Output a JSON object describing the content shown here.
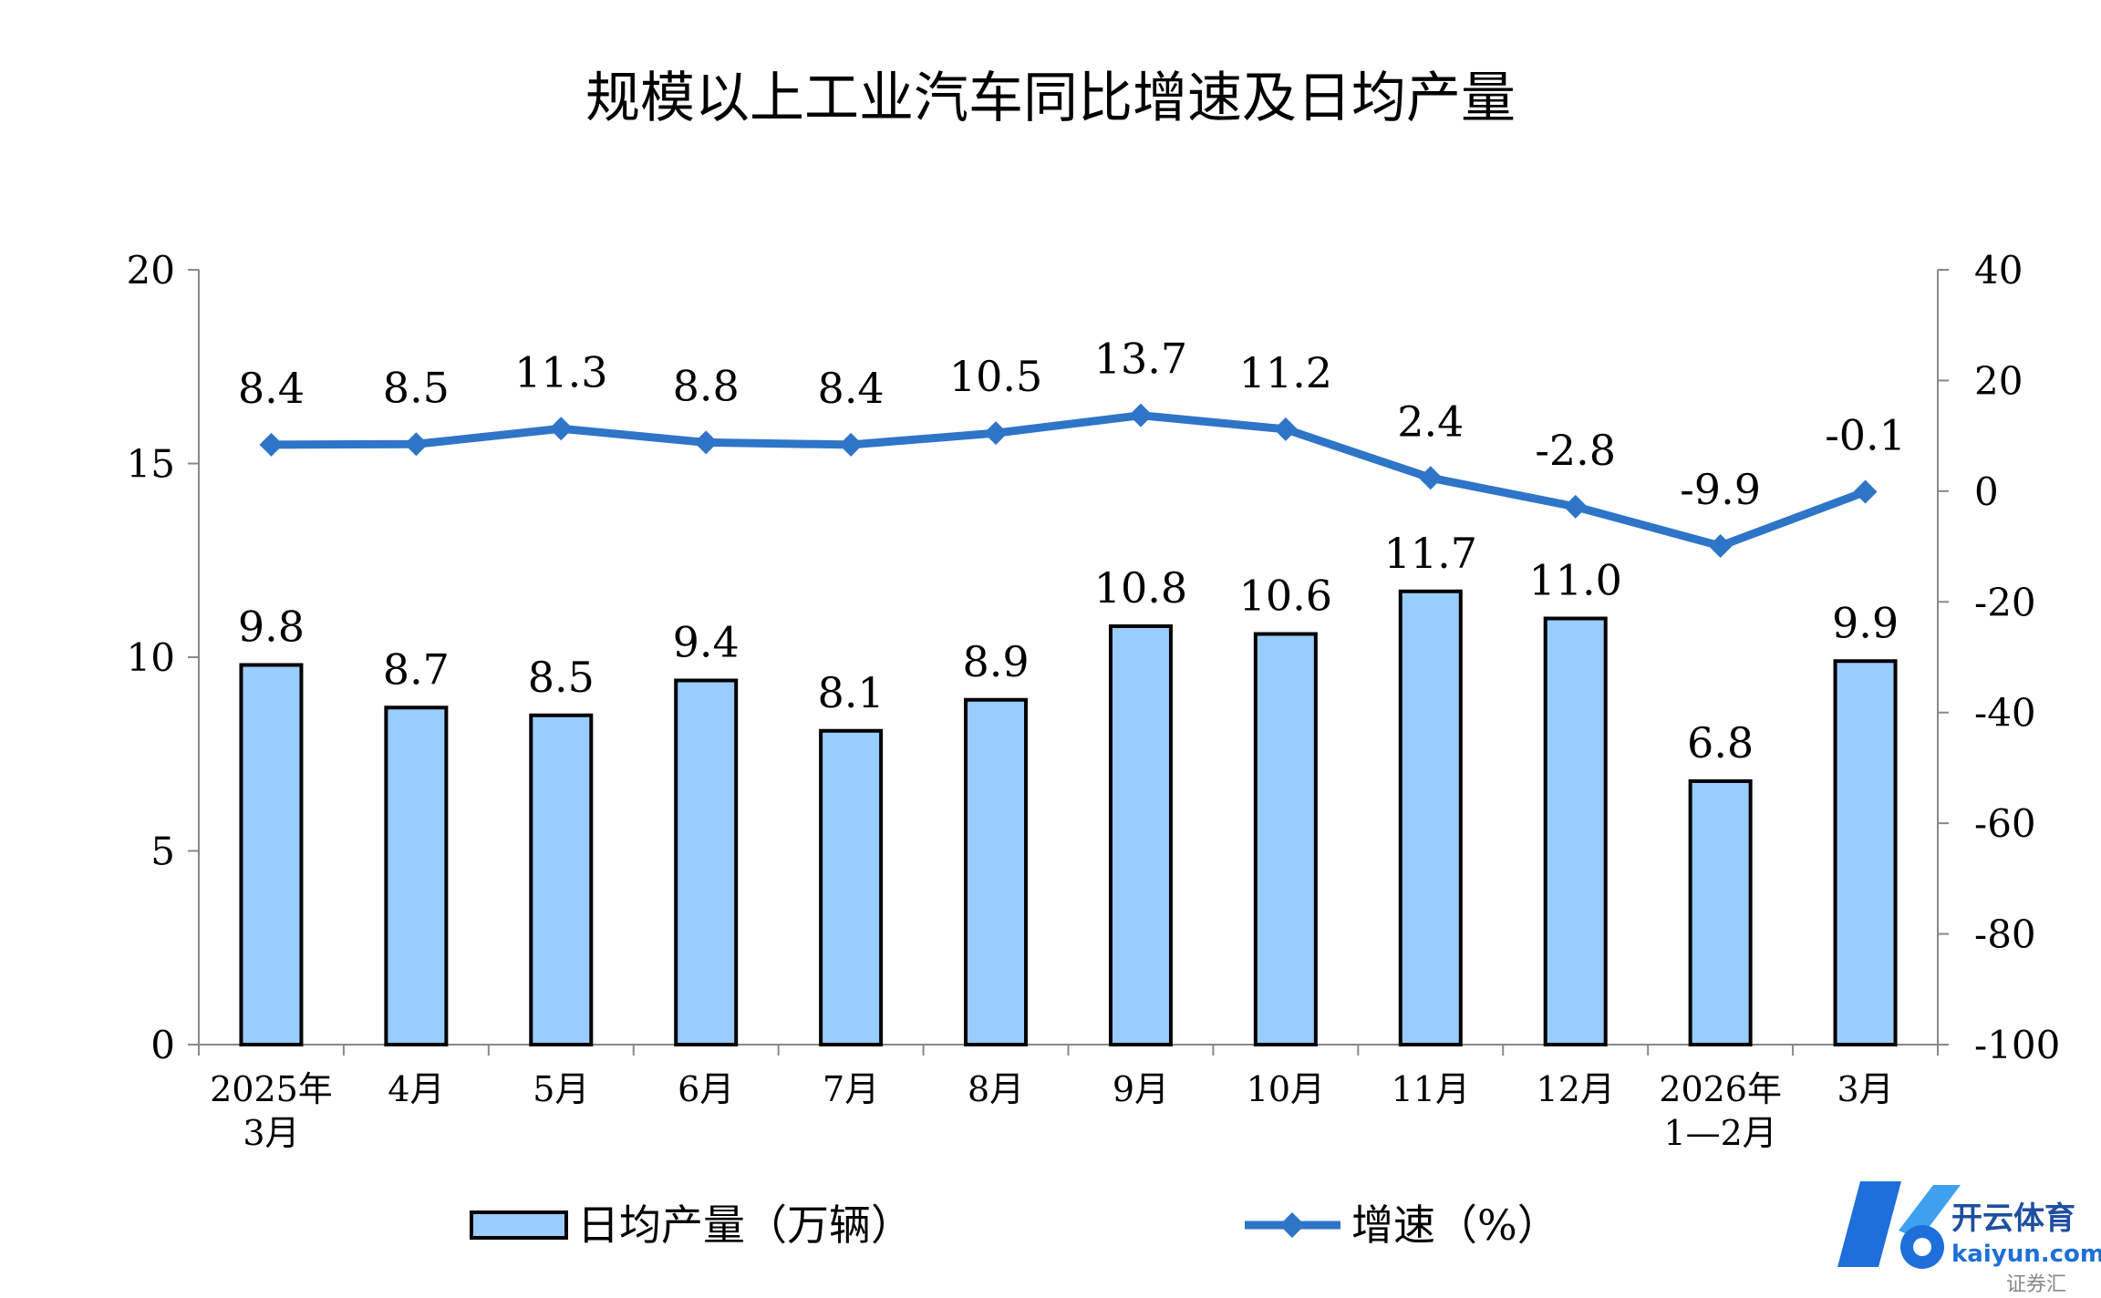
{
  "chart_data": {
    "type": "bar+line",
    "title": "规模以上工业汽车同比增速及日均产量",
    "categories": [
      [
        "2025年",
        "3月"
      ],
      [
        "4月"
      ],
      [
        "5月"
      ],
      [
        "6月"
      ],
      [
        "7月"
      ],
      [
        "8月"
      ],
      [
        "9月"
      ],
      [
        "10月"
      ],
      [
        "11月"
      ],
      [
        "12月"
      ],
      [
        "2026年",
        "1—2月"
      ],
      [
        "3月"
      ]
    ],
    "series": [
      {
        "name": "日均产量（万辆）",
        "type": "bar",
        "axis": "left",
        "color": "#99CCFF",
        "values": [
          9.8,
          8.7,
          8.5,
          9.4,
          8.1,
          8.9,
          10.8,
          10.6,
          11.7,
          11.0,
          6.8,
          9.9
        ],
        "labels": [
          "9.8",
          "8.7",
          "8.5",
          "9.4",
          "8.1",
          "8.9",
          "10.8",
          "10.6",
          "11.7",
          "11.0",
          "6.8",
          "9.9"
        ]
      },
      {
        "name": "增速（%）",
        "type": "line",
        "axis": "right",
        "color": "#2E75C8",
        "values": [
          8.4,
          8.5,
          11.3,
          8.8,
          8.4,
          10.5,
          13.7,
          11.2,
          2.4,
          -2.8,
          -9.9,
          -0.1
        ],
        "labels": [
          "8.4",
          "8.5",
          "11.3",
          "8.8",
          "8.4",
          "10.5",
          "13.7",
          "11.2",
          "2.4",
          "-2.8",
          "-9.9",
          "-0.1"
        ]
      }
    ],
    "y_left": {
      "min": 0,
      "max": 20,
      "ticks": [
        "0",
        "5",
        "10",
        "15",
        "20"
      ]
    },
    "y_right": {
      "min": -100,
      "max": 40,
      "ticks": [
        "-100",
        "-80",
        "-60",
        "-40",
        "-20",
        "0",
        "20",
        "40"
      ]
    },
    "legend": "bottom"
  },
  "watermark": {
    "icon": "kaiyun-logo-icon",
    "cn": "开云体育",
    "en": "kaiyun.com",
    "sub": "证券汇"
  }
}
